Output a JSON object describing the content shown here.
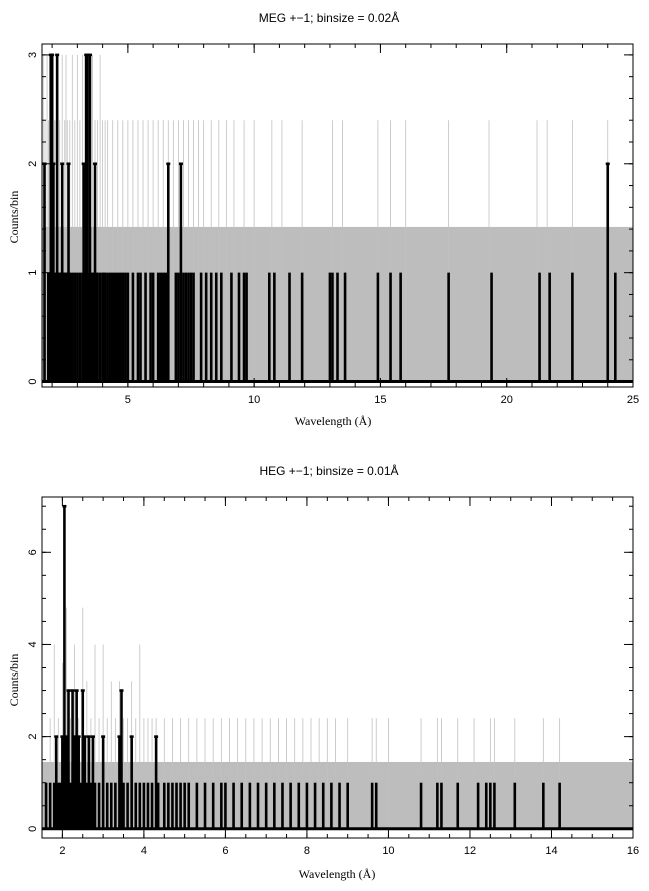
{
  "chart_data": [
    {
      "type": "line",
      "title": "MEG +−1; binsize = 0.02Å",
      "xlabel": "Wavelength (Å)",
      "ylabel": "Counts/bin",
      "xlim": [
        1.6,
        25
      ],
      "ylim": [
        -0.05,
        3.1
      ],
      "xticks": [
        5,
        10,
        15,
        20,
        25
      ],
      "yticks": [
        0,
        1,
        2,
        3
      ],
      "grid": false,
      "background_band": {
        "description": "grey",
        "y_top": 1.42,
        "color": "#bdbdbd"
      },
      "series": [
        {
          "color": "#c0c0c0",
          "style": "thin",
          "x": [
            1.65,
            1.72,
            1.8,
            1.86,
            1.9,
            1.95,
            2.0,
            2.05,
            2.1,
            2.15,
            2.2,
            2.3,
            2.4,
            2.5,
            2.55,
            2.6,
            2.7,
            2.8,
            2.9,
            3.0,
            3.1,
            3.2,
            3.3,
            3.45,
            3.6,
            3.7,
            3.8,
            3.9,
            4.0,
            4.1,
            4.2,
            4.4,
            4.6,
            4.8,
            5.0,
            5.2,
            5.4,
            5.6,
            5.8,
            6.0,
            6.2,
            6.4,
            6.6,
            6.8,
            7.0,
            7.2,
            7.4,
            7.6,
            7.8,
            8.0,
            8.3,
            8.6,
            8.9,
            9.2,
            9.6,
            10.0,
            10.7,
            11.1,
            11.9,
            13.1,
            13.5,
            14.9,
            15.4,
            16.0,
            17.7,
            19.3,
            21.2,
            21.6,
            22.6,
            24.0
          ],
          "values": [
            3,
            2.4,
            3,
            2.4,
            3,
            2.4,
            3,
            3,
            2.4,
            2.4,
            3,
            2.4,
            3,
            2.4,
            3,
            2.4,
            2.4,
            3,
            2.4,
            3,
            2.4,
            3,
            3,
            2.4,
            3,
            2.4,
            2.4,
            3,
            2.4,
            2.4,
            2.4,
            2.4,
            2.4,
            2.4,
            2.4,
            2.4,
            2.4,
            2.4,
            2.4,
            2.4,
            2.4,
            2.4,
            2.4,
            2.4,
            2.4,
            2.4,
            2.4,
            2.4,
            2.4,
            2.4,
            2.4,
            2.4,
            2.4,
            2.4,
            2.4,
            2.4,
            2.4,
            2.4,
            2.4,
            2.4,
            2.4,
            2.4,
            2.4,
            2.4,
            2.4,
            2.4,
            2.4,
            2.4,
            2.4,
            2.4
          ]
        },
        {
          "color": "#000000",
          "style": "thick",
          "x": [
            1.7,
            1.85,
            1.9,
            1.95,
            2.0,
            2.05,
            2.1,
            2.15,
            2.2,
            2.25,
            2.3,
            2.35,
            2.4,
            2.45,
            2.5,
            2.55,
            2.6,
            2.65,
            2.7,
            2.8,
            2.9,
            3.0,
            3.1,
            3.2,
            3.25,
            3.3,
            3.35,
            3.4,
            3.45,
            3.5,
            3.55,
            3.6,
            3.65,
            3.7,
            3.75,
            3.8,
            3.9,
            4.0,
            4.05,
            4.1,
            4.2,
            4.3,
            4.4,
            4.5,
            4.6,
            4.7,
            4.8,
            4.9,
            5.0,
            5.2,
            5.4,
            5.5,
            5.7,
            5.9,
            6.0,
            6.2,
            6.3,
            6.4,
            6.5,
            6.6,
            6.9,
            7.0,
            7.1,
            7.2,
            7.3,
            7.4,
            7.5,
            7.6,
            7.9,
            8.1,
            8.3,
            8.5,
            8.7,
            9.1,
            9.4,
            9.6,
            9.7,
            10.6,
            10.8,
            11.4,
            11.9,
            13.0,
            13.1,
            13.3,
            13.6,
            14.9,
            15.4,
            15.8,
            17.7,
            19.4,
            21.3,
            21.7,
            22.6,
            24.0,
            24.3
          ],
          "values": [
            2,
            1,
            1,
            3,
            3,
            2,
            1,
            1,
            3,
            1,
            1,
            1,
            2,
            1,
            1,
            1,
            1,
            2,
            1,
            1,
            1,
            1,
            1,
            1,
            2,
            1,
            3,
            3,
            1,
            3,
            1,
            1,
            1,
            2,
            1,
            1,
            1,
            1,
            1,
            1,
            1,
            1,
            1,
            1,
            1,
            1,
            1,
            1,
            1,
            1,
            1,
            1,
            1,
            1,
            1,
            1,
            1,
            1,
            1,
            2,
            1,
            1,
            2,
            1,
            1,
            1,
            1,
            1,
            1,
            1,
            1,
            1,
            1,
            1,
            1,
            1,
            1,
            1,
            1,
            1,
            1,
            1,
            1,
            1,
            1,
            1,
            1,
            1,
            1,
            1,
            1,
            1,
            1,
            2,
            1
          ]
        }
      ]
    },
    {
      "type": "line",
      "title": "HEG +−1; binsize = 0.01Å",
      "xlabel": "Wavelength (Å)",
      "ylabel": "Counts/bin",
      "xlim": [
        1.5,
        16
      ],
      "ylim": [
        -0.2,
        7.2
      ],
      "xticks": [
        2,
        4,
        6,
        8,
        10,
        12,
        14,
        16
      ],
      "yticks": [
        0,
        2,
        4,
        6
      ],
      "grid": false,
      "background_band": {
        "description": "grey",
        "y_top": 1.45,
        "color": "#bdbdbd"
      },
      "series": [
        {
          "color": "#c0c0c0",
          "style": "thin",
          "x": [
            1.7,
            1.8,
            1.9,
            2.0,
            2.05,
            2.1,
            2.2,
            2.3,
            2.4,
            2.5,
            2.6,
            2.7,
            2.8,
            2.9,
            3.0,
            3.1,
            3.2,
            3.3,
            3.4,
            3.5,
            3.6,
            3.7,
            3.8,
            3.9,
            4.0,
            4.1,
            4.2,
            4.3,
            4.5,
            4.7,
            4.9,
            5.1,
            5.3,
            5.5,
            5.7,
            5.9,
            6.1,
            6.3,
            6.5,
            6.7,
            6.9,
            7.1,
            7.3,
            7.5,
            7.7,
            7.9,
            8.1,
            8.3,
            8.5,
            8.7,
            9.0,
            9.6,
            9.7,
            10.0,
            10.8,
            11.2,
            11.3,
            11.7,
            12.1,
            12.5,
            12.6,
            13.1,
            13.8,
            14.2
          ],
          "values": [
            2.4,
            4,
            2.4,
            3.6,
            2.4,
            4.8,
            2.4,
            4,
            2.4,
            4.8,
            3.2,
            2.4,
            4,
            2.4,
            4,
            2.4,
            3.2,
            2.4,
            3.2,
            2.4,
            2.4,
            3.2,
            2.4,
            4,
            2.4,
            2.4,
            2.4,
            2.4,
            2.4,
            2.4,
            2.4,
            2.4,
            2.4,
            2.4,
            2.4,
            2.4,
            2.4,
            2.4,
            2.4,
            2.4,
            2.4,
            2.4,
            2.4,
            2.4,
            2.4,
            2.4,
            2.4,
            2.4,
            2.4,
            2.4,
            2.4,
            2.4,
            2.4,
            2.4,
            2.4,
            2.4,
            2.4,
            2.4,
            2.4,
            2.4,
            2.4,
            2.4,
            2.4,
            2.4
          ]
        },
        {
          "color": "#000000",
          "style": "thick",
          "x": [
            1.6,
            1.7,
            1.8,
            1.85,
            1.9,
            1.95,
            2.0,
            2.05,
            2.1,
            2.15,
            2.2,
            2.25,
            2.3,
            2.35,
            2.4,
            2.45,
            2.5,
            2.55,
            2.6,
            2.65,
            2.7,
            2.75,
            2.8,
            2.9,
            3.0,
            3.1,
            3.2,
            3.3,
            3.4,
            3.45,
            3.5,
            3.6,
            3.7,
            3.8,
            3.9,
            4.0,
            4.1,
            4.2,
            4.3,
            4.35,
            4.5,
            4.6,
            4.7,
            4.8,
            4.9,
            5.0,
            5.1,
            5.3,
            5.5,
            5.7,
            5.9,
            6.0,
            6.2,
            6.4,
            6.6,
            6.8,
            7.0,
            7.2,
            7.4,
            7.6,
            7.8,
            8.0,
            8.2,
            8.4,
            8.6,
            8.8,
            9.0,
            9.6,
            9.7,
            10.8,
            11.2,
            11.3,
            11.7,
            12.2,
            12.4,
            12.5,
            12.6,
            13.1,
            13.8,
            14.2
          ],
          "values": [
            1,
            1,
            1,
            2,
            1,
            1,
            2,
            7,
            2,
            3,
            1,
            3,
            2,
            3,
            2,
            1,
            3,
            2,
            1,
            2,
            1,
            2,
            1,
            1,
            2,
            1,
            1,
            1,
            2,
            3,
            1,
            1,
            2,
            1,
            1,
            1,
            1,
            1,
            2,
            1,
            1,
            1,
            1,
            1,
            1,
            1,
            1,
            1,
            1,
            1,
            1,
            1,
            1,
            1,
            1,
            1,
            1,
            1,
            1,
            1,
            1,
            1,
            1,
            1,
            1,
            1,
            1,
            1,
            1,
            1,
            1,
            1,
            1,
            1,
            1,
            1,
            1,
            1,
            1,
            1
          ]
        }
      ]
    }
  ]
}
